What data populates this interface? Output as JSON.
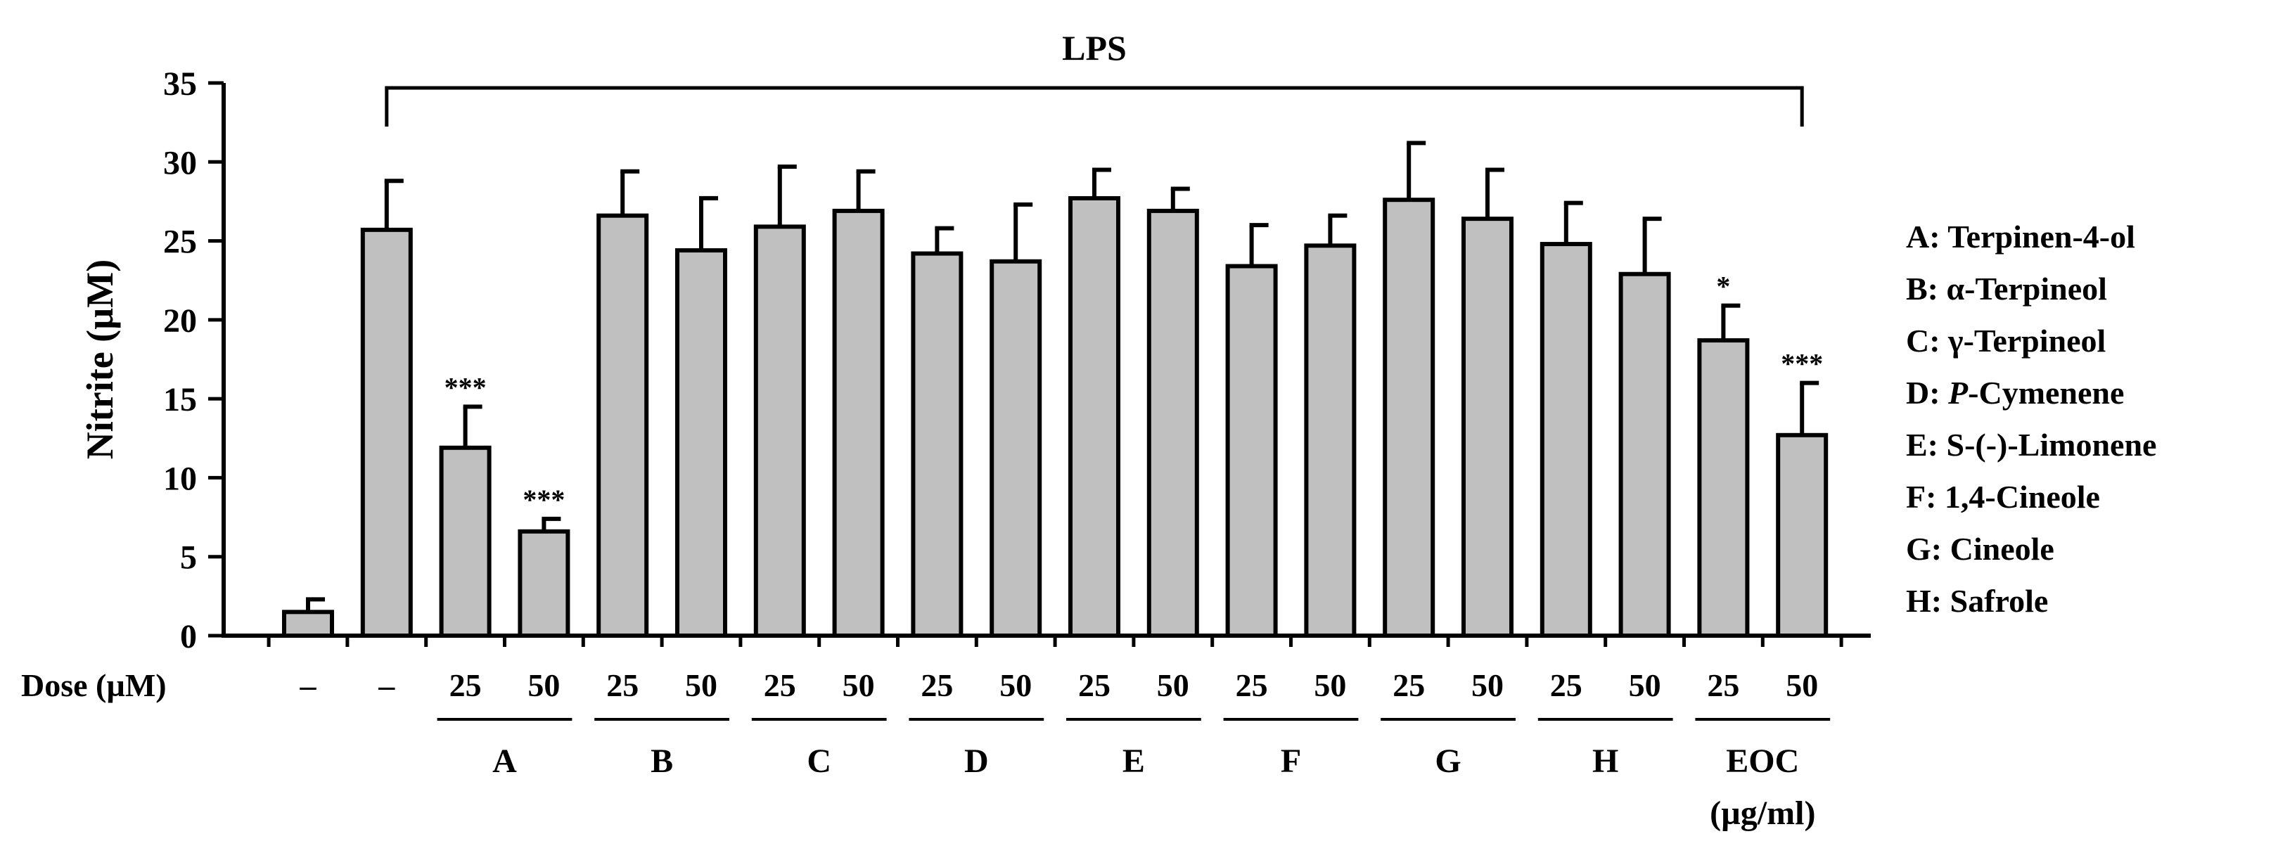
{
  "chart_data": {
    "type": "bar",
    "ylabel": "Nitrite (µM)",
    "ylim": [
      0,
      35
    ],
    "yticks": [
      0,
      5,
      10,
      15,
      20,
      25,
      30,
      35
    ],
    "dose_label": "Dose (µM)",
    "bracket_label": "LPS",
    "bar_color": "#c0c0c0",
    "categories": [
      "–",
      "–",
      "25",
      "50",
      "25",
      "50",
      "25",
      "50",
      "25",
      "50",
      "25",
      "50",
      "25",
      "50",
      "25",
      "50",
      "25",
      "50",
      "25",
      "50"
    ],
    "values": [
      1.5,
      25.7,
      11.9,
      6.6,
      26.6,
      24.4,
      25.9,
      26.9,
      24.2,
      23.7,
      27.7,
      26.9,
      23.4,
      24.7,
      27.6,
      26.4,
      24.8,
      22.9,
      18.7,
      12.7
    ],
    "errors": [
      0.8,
      3.1,
      2.6,
      0.8,
      2.8,
      3.3,
      3.8,
      2.5,
      1.6,
      3.6,
      1.8,
      1.4,
      2.6,
      1.9,
      3.6,
      3.1,
      2.6,
      3.5,
      2.2,
      3.3
    ],
    "significance": [
      "",
      "",
      "***",
      "***",
      "",
      "",
      "",
      "",
      "",
      "",
      "",
      "",
      "",
      "",
      "",
      "",
      "",
      "",
      "*",
      "***"
    ],
    "groups": [
      {
        "label": "A",
        "label2": ""
      },
      {
        "label": "B",
        "label2": ""
      },
      {
        "label": "C",
        "label2": ""
      },
      {
        "label": "D",
        "label2": ""
      },
      {
        "label": "E",
        "label2": ""
      },
      {
        "label": "F",
        "label2": ""
      },
      {
        "label": "G",
        "label2": ""
      },
      {
        "label": "H",
        "label2": ""
      },
      {
        "label": "EOC",
        "label2": "(µg/ml)"
      }
    ]
  },
  "legend": [
    {
      "prefix": "A: ",
      "italic": "",
      "text": "Terpinen-4-ol"
    },
    {
      "prefix": "B: ",
      "italic": "",
      "text": "α-Terpineol"
    },
    {
      "prefix": "C: ",
      "italic": "",
      "text": "γ-Terpineol"
    },
    {
      "prefix": "D: ",
      "italic": "P",
      "text": "-Cymenene"
    },
    {
      "prefix": "E: ",
      "italic": "",
      "text": "S-(-)-Limonene"
    },
    {
      "prefix": "F: ",
      "italic": "",
      "text": "1,4-Cineole"
    },
    {
      "prefix": "G: ",
      "italic": "",
      "text": "Cineole"
    },
    {
      "prefix": "H: ",
      "italic": "",
      "text": "Safrole"
    }
  ]
}
